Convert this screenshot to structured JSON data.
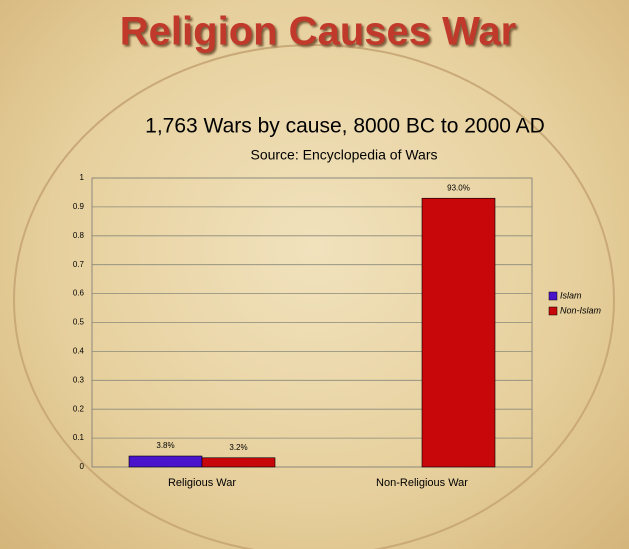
{
  "slide_title": "Religion Causes War",
  "chart_data": {
    "type": "bar",
    "title": "1,763 Wars by cause, 8000 BC to 2000 AD",
    "subtitle": "Source: Encyclopedia of Wars",
    "categories": [
      "Religious War",
      "Non-Religious War"
    ],
    "series": [
      {
        "name": "Islam",
        "color": "#4a13cc",
        "values": [
          0.038,
          null
        ],
        "value_labels": [
          "3.8%",
          null
        ]
      },
      {
        "name": "Non-Islam",
        "color": "#c8070b",
        "values": [
          0.032,
          0.93
        ],
        "value_labels": [
          "3.2%",
          "93.0%"
        ]
      }
    ],
    "ylim": [
      0,
      1
    ],
    "yticks": [
      0,
      0.1,
      0.2,
      0.3,
      0.4,
      0.5,
      0.6,
      0.7,
      0.8,
      0.9,
      1
    ],
    "grid": true,
    "legend": "right"
  }
}
